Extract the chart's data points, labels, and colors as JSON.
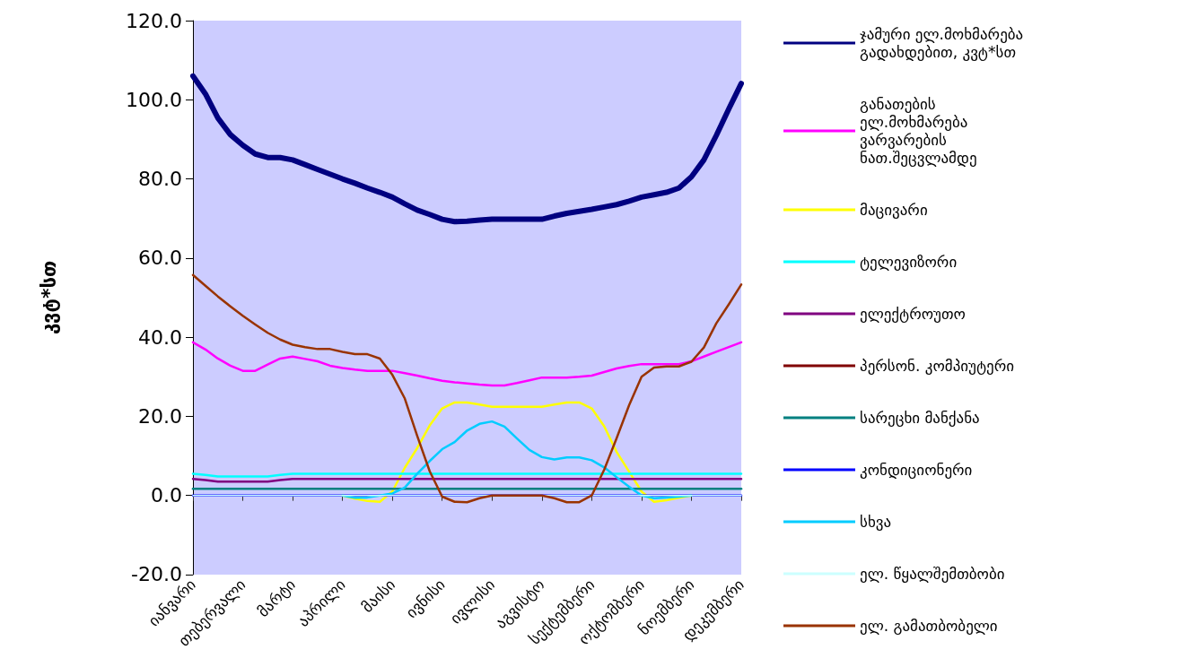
{
  "chart_data": {
    "type": "line",
    "ylabel": "კვტ*სთ",
    "categories": [
      "იანვარი",
      null,
      null,
      null,
      "თებერვალი",
      null,
      null,
      null,
      "მარტი",
      null,
      null,
      null,
      "აპრილი",
      null,
      null,
      null,
      "მაისი",
      null,
      null,
      null,
      "ივნისი",
      null,
      null,
      null,
      "ივლისი",
      null,
      null,
      null,
      "აგვისტო",
      null,
      null,
      null,
      "სექტემბერი",
      null,
      null,
      null,
      "ოქტომბერი",
      null,
      null,
      null,
      "ნოემბერი",
      null,
      null,
      null,
      "დეკემბერი"
    ],
    "ylim": [
      -20,
      120
    ],
    "yticks": [
      {
        "value": -20,
        "label": "-20.0"
      },
      {
        "value": 0,
        "label": "0.0"
      },
      {
        "value": 20,
        "label": "20.0"
      },
      {
        "value": 40,
        "label": "40.0"
      },
      {
        "value": 60,
        "label": "60.0"
      },
      {
        "value": 80,
        "label": "80.0"
      },
      {
        "value": 100,
        "label": "100.0"
      },
      {
        "value": 120,
        "label": "120.0"
      }
    ],
    "grid": false,
    "legend": "right",
    "marker": "none",
    "line_style": "solid",
    "series": [
      {
        "name": "ჯამური ელ.მოხმარება გადახდებით, კვტ*სთ",
        "color": "#000080",
        "values": [
          106,
          101.5,
          95.4,
          91.2,
          88.5,
          86.3,
          85.4,
          85.4,
          84.8,
          83.6,
          82.4,
          81.2,
          80,
          78.9,
          77.7,
          76.6,
          75.4,
          73.7,
          72.1,
          71,
          69.8,
          69.2,
          69.3,
          69.6,
          69.8,
          69.8,
          69.8,
          69.8,
          69.8,
          70.6,
          71.3,
          71.8,
          72.3,
          72.9,
          73.5,
          74.4,
          75.4,
          76,
          76.6,
          77.7,
          80.5,
          84.8,
          91,
          97.7,
          104.1
        ]
      },
      {
        "name": "განათების ელ.მოხმარება ვარვარების ნათ.შეცვლამდე",
        "color": "#ff00ff",
        "values": [
          38.7,
          36.9,
          34.6,
          32.8,
          31.5,
          31.5,
          33.1,
          34.6,
          35.1,
          34.5,
          33.9,
          32.8,
          32.2,
          31.8,
          31.5,
          31.5,
          31.5,
          30.9,
          30.3,
          29.6,
          29,
          28.6,
          28.3,
          28,
          27.8,
          27.8,
          28.4,
          29.1,
          29.8,
          29.8,
          29.8,
          30,
          30.3,
          31.2,
          32.1,
          32.7,
          33.2,
          33.2,
          33.2,
          33.2,
          33.9,
          35.1,
          36.3,
          37.5,
          38.7
        ]
      },
      {
        "name": "მაცივარი",
        "color": "#ffff00",
        "values": [
          null,
          null,
          null,
          null,
          null,
          null,
          null,
          null,
          null,
          null,
          null,
          null,
          0,
          -0.8,
          -1.4,
          -1.6,
          1,
          7,
          12,
          17.7,
          22,
          23.5,
          23.5,
          23,
          22.4,
          22.4,
          22.4,
          22.4,
          22.4,
          23,
          23.5,
          23.5,
          22,
          17.5,
          11,
          6,
          1,
          -1.6,
          -1.2,
          -0.6,
          0,
          null,
          null,
          null,
          null
        ]
      },
      {
        "name": "ტელევიზორი",
        "color": "#00ffff",
        "values": [
          5.5,
          5.2,
          4.8,
          4.8,
          4.8,
          4.8,
          4.8,
          5.2,
          5.5,
          5.5,
          5.5,
          5.5,
          5.5,
          5.5,
          5.5,
          5.5,
          5.5,
          5.5,
          5.5,
          5.5,
          5.5,
          5.5,
          5.5,
          5.5,
          5.5,
          5.5,
          5.5,
          5.5,
          5.5,
          5.5,
          5.5,
          5.5,
          5.5,
          5.5,
          5.5,
          5.5,
          5.5,
          5.5,
          5.5,
          5.5,
          5.5,
          5.5,
          5.5,
          5.5,
          5.5
        ]
      },
      {
        "name": "ელექტროუთო",
        "color": "#800080",
        "values": [
          4.2,
          3.9,
          3.5,
          3.5,
          3.5,
          3.5,
          3.5,
          3.9,
          4.2,
          4.2,
          4.2,
          4.2,
          4.2,
          4.2,
          4.2,
          4.2,
          4.2,
          4.2,
          4.2,
          4.2,
          4.2,
          4.2,
          4.2,
          4.2,
          4.2,
          4.2,
          4.2,
          4.2,
          4.2,
          4.2,
          4.2,
          4.2,
          4.2,
          4.2,
          4.2,
          4.2,
          4.2,
          4.2,
          4.2,
          4.2,
          4.2,
          4.2,
          4.2,
          4.2,
          4.2
        ]
      },
      {
        "name": "პერსონ. კომპიუტერი",
        "color": "#800000",
        "values": [
          null,
          null,
          null,
          null,
          null,
          null,
          null,
          null,
          null,
          null,
          null,
          null,
          null,
          null,
          null,
          null,
          null,
          null,
          null,
          null,
          null,
          null,
          null,
          null,
          null,
          null,
          null,
          null,
          null,
          null,
          null,
          null,
          null,
          null,
          null,
          null,
          null,
          null,
          null,
          null,
          null,
          null,
          null,
          null,
          null
        ]
      },
      {
        "name": "სარეცხი მანქანა",
        "color": "#008080",
        "values": [
          1.7,
          1.7,
          1.7,
          1.7,
          1.7,
          1.7,
          1.7,
          1.7,
          1.7,
          1.7,
          1.7,
          1.7,
          1.7,
          1.7,
          1.7,
          1.7,
          1.7,
          1.7,
          1.7,
          1.7,
          1.7,
          1.7,
          1.7,
          1.7,
          1.7,
          1.7,
          1.7,
          1.7,
          1.7,
          1.7,
          1.7,
          1.7,
          1.7,
          1.7,
          1.7,
          1.7,
          1.7,
          1.7,
          1.7,
          1.7,
          1.7,
          1.7,
          1.7,
          1.7,
          1.7
        ]
      },
      {
        "name": "კონდიციონერი",
        "color": "#0000ff",
        "values": [
          0,
          0,
          0,
          0,
          0,
          0,
          0,
          0,
          0,
          0,
          0,
          0,
          0,
          0,
          0,
          0,
          0,
          0,
          0,
          0,
          0,
          0,
          0,
          0,
          0,
          0,
          0,
          0,
          0,
          0,
          0,
          0,
          0,
          0,
          0,
          0,
          0,
          0,
          0,
          0,
          0,
          0,
          0,
          0,
          0
        ]
      },
      {
        "name": "სხვა",
        "color": "#00ccff",
        "values": [
          null,
          null,
          null,
          null,
          null,
          null,
          null,
          null,
          null,
          null,
          null,
          null,
          0,
          -0.6,
          -0.5,
          0,
          0.5,
          2,
          5.5,
          8.7,
          11.7,
          13.5,
          16.4,
          18.1,
          18.7,
          17.4,
          14.4,
          11.5,
          9.7,
          9.1,
          9.6,
          9.6,
          8.9,
          7.1,
          4.6,
          2.2,
          0,
          -0.7,
          -0.5,
          -0.3,
          0,
          null,
          null,
          null,
          null
        ]
      },
      {
        "name": "ელ. წყალშემთბობი",
        "color": "#ccffff",
        "values": [
          0,
          0,
          0,
          0,
          0,
          0,
          0,
          0,
          0,
          0,
          0,
          0,
          0,
          0,
          0,
          0,
          0,
          0,
          0,
          0,
          0,
          0,
          0,
          0,
          0,
          0,
          0,
          0,
          0,
          0,
          0,
          0,
          0,
          0,
          0,
          0,
          0,
          0,
          0,
          0,
          0,
          0,
          0,
          0,
          0
        ]
      },
      {
        "name": "ელ. გამათბობელი",
        "color": "#993300",
        "values": [
          55.7,
          53,
          50.3,
          47.8,
          45.4,
          43.2,
          41.1,
          39.4,
          38.1,
          37.5,
          37,
          37,
          36.3,
          35.7,
          35.7,
          34.6,
          30.5,
          24.5,
          15,
          6.1,
          -0.3,
          -1.6,
          -1.7,
          -0.7,
          0,
          0,
          0,
          0,
          0,
          -0.7,
          -1.7,
          -1.7,
          0,
          6.5,
          14.5,
          22.8,
          30,
          32.3,
          32.6,
          32.6,
          33.8,
          37.4,
          43.5,
          48.3,
          53.3
        ]
      }
    ]
  }
}
